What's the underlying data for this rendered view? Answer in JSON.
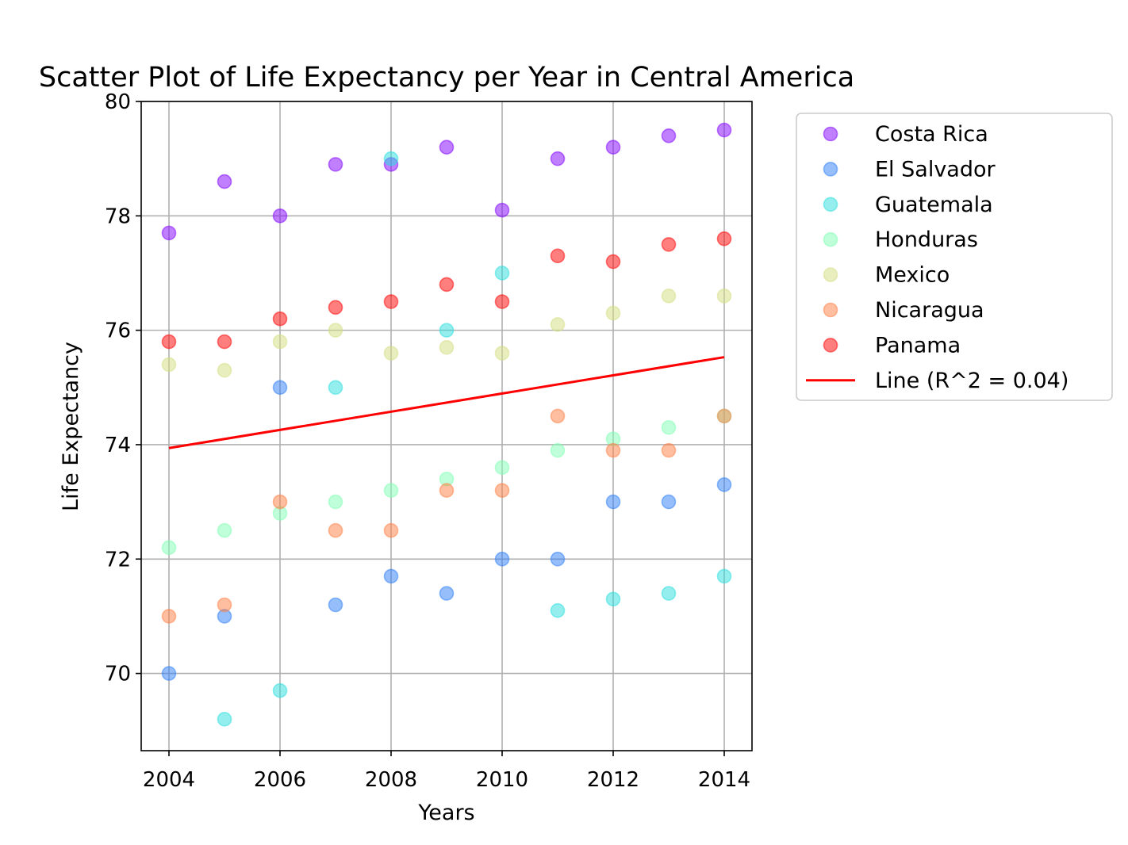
{
  "chart_data": {
    "type": "scatter",
    "title": "Scatter Plot of Life Expectancy per Year in Central America",
    "xlabel": "Years",
    "ylabel": "Life Expectancy",
    "xlim": [
      2003.5,
      2014.5
    ],
    "ylim": [
      68.65,
      80.0
    ],
    "xticks": [
      2004,
      2006,
      2008,
      2010,
      2012,
      2014
    ],
    "yticks": [
      70,
      72,
      74,
      76,
      78,
      80
    ],
    "grid": true,
    "legend_position": "outside-right-top",
    "x": [
      2004,
      2005,
      2006,
      2007,
      2008,
      2009,
      2010,
      2011,
      2012,
      2013,
      2014
    ],
    "series": [
      {
        "name": "Costa Rica",
        "color": "#8000ff",
        "values": [
          77.7,
          78.6,
          78.0,
          78.9,
          78.9,
          79.2,
          78.1,
          79.0,
          79.2,
          79.4,
          79.5
        ]
      },
      {
        "name": "El Salvador",
        "color": "#2c7ef7",
        "values": [
          70.0,
          71.0,
          75.0,
          71.2,
          71.7,
          71.4,
          72.0,
          72.0,
          73.0,
          73.0,
          73.3
        ]
      },
      {
        "name": "Guatemala",
        "color": "#2adddd",
        "values": [
          null,
          69.2,
          69.7,
          75.0,
          79.0,
          76.0,
          77.0,
          71.1,
          71.3,
          71.4,
          71.7
        ]
      },
      {
        "name": "Honduras",
        "color": "#80ffb4",
        "values": [
          72.2,
          72.5,
          72.8,
          73.0,
          73.2,
          73.4,
          73.6,
          73.9,
          74.1,
          74.3,
          74.5
        ]
      },
      {
        "name": "Mexico",
        "color": "#d4dd80",
        "values": [
          75.4,
          75.3,
          75.8,
          76.0,
          75.6,
          75.7,
          75.6,
          76.1,
          76.3,
          76.6,
          76.6
        ]
      },
      {
        "name": "Nicaragua",
        "color": "#ff7e41",
        "values": [
          71.0,
          71.2,
          73.0,
          72.5,
          72.5,
          73.2,
          73.2,
          74.5,
          73.9,
          73.9,
          74.5
        ]
      },
      {
        "name": "Panama",
        "color": "#ff0000",
        "values": [
          75.8,
          75.8,
          76.2,
          76.4,
          76.5,
          76.8,
          76.5,
          77.3,
          77.2,
          77.5,
          77.6
        ]
      }
    ],
    "trend_line": {
      "name": "Line (R^2  = 0.04)",
      "color": "#ff0000",
      "x": [
        2004,
        2014
      ],
      "y": [
        73.94,
        75.53
      ]
    }
  }
}
